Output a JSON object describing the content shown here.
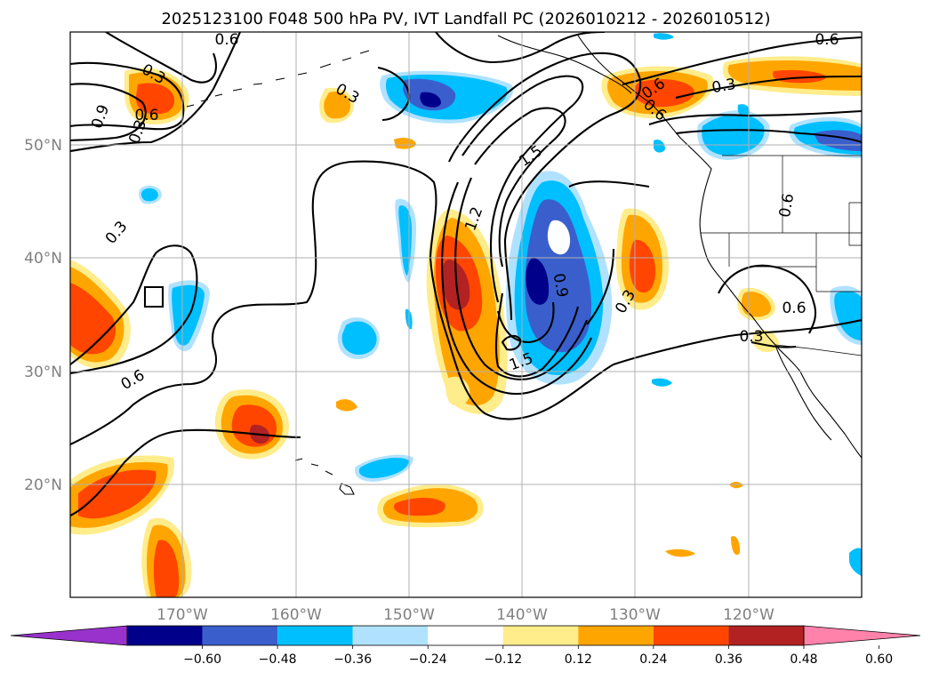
{
  "title": "2025123100 F048 500 hPa PV, IVT Landfall PC (2026010212 - 2026010512)",
  "map": {
    "lon_labels": [
      "170°W",
      "160°W",
      "150°W",
      "140°W",
      "130°W",
      "120°W"
    ],
    "lat_labels": [
      "50°N",
      "40°N",
      "30°N",
      "20°N"
    ],
    "grid": true
  },
  "contour_labels": [
    "0.6",
    "0.6",
    "0.3",
    "0.3",
    "0.6",
    "0.3",
    "1.2",
    "1.5",
    "1.5",
    "0.9",
    "0.3",
    "0.6",
    "0.3",
    "0.6",
    "0.6",
    "0.3",
    "0.6",
    "0.6",
    "0.3",
    "0.9"
  ],
  "colorbar": {
    "ticks": [
      "−0.60",
      "−0.48",
      "−0.36",
      "−0.24",
      "−0.12",
      "0.12",
      "0.24",
      "0.36",
      "0.48",
      "0.60"
    ],
    "colors": [
      "#9932cc",
      "#00008b",
      "#3a5fcd",
      "#00bfff",
      "#b0e2ff",
      "#ffffff",
      "#ffec8b",
      "#ffa500",
      "#ff4500",
      "#b22222",
      "#ff82ab"
    ]
  }
}
